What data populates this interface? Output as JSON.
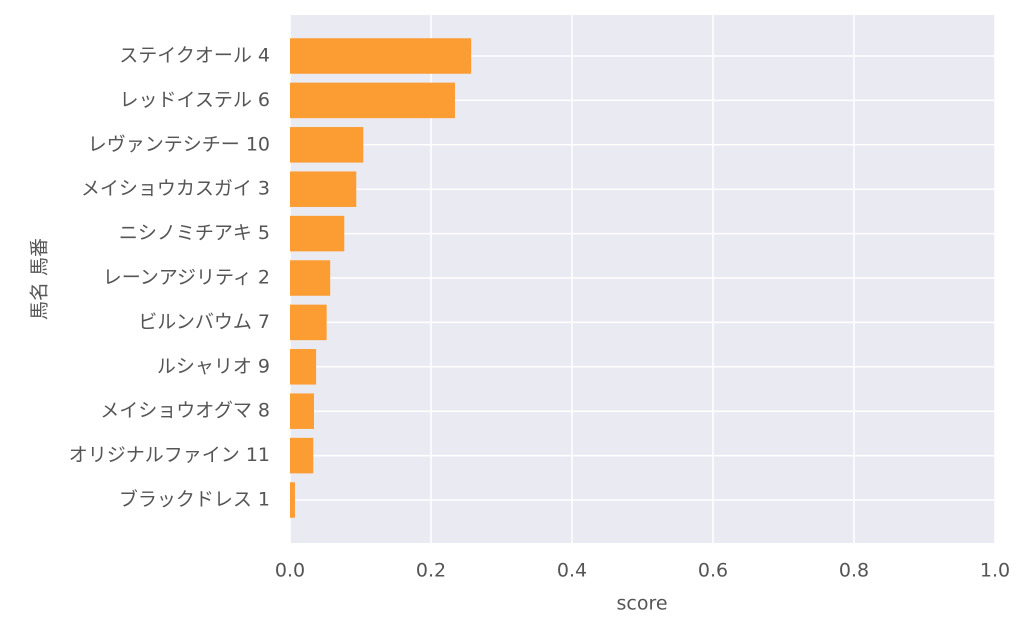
{
  "chart_data": {
    "type": "barh",
    "xlabel": "score",
    "ylabel": "馬名 馬番",
    "categories": [
      "ステイクオール 4",
      "レッドイステル 6",
      "レヴァンテシチー 10",
      "メイショウカスガイ 3",
      "ニシノミチアキ 5",
      "レーンアジリティ 2",
      "ビルンバウム 7",
      "ルシャリオ 9",
      "メイショウオグマ 8",
      "オリジナルファイン 11",
      "ブラックドレス 1"
    ],
    "values": [
      0.257,
      0.234,
      0.104,
      0.094,
      0.077,
      0.057,
      0.052,
      0.037,
      0.034,
      0.033,
      0.007
    ],
    "color": "#fb9d32",
    "xlim": [
      0,
      1
    ],
    "xticks": [
      {
        "value": 0,
        "label": "0.0"
      },
      0.2,
      0.4,
      0.6,
      0.8,
      {
        "value": 1,
        "label": "1.0"
      }
    ],
    "grid": true
  }
}
